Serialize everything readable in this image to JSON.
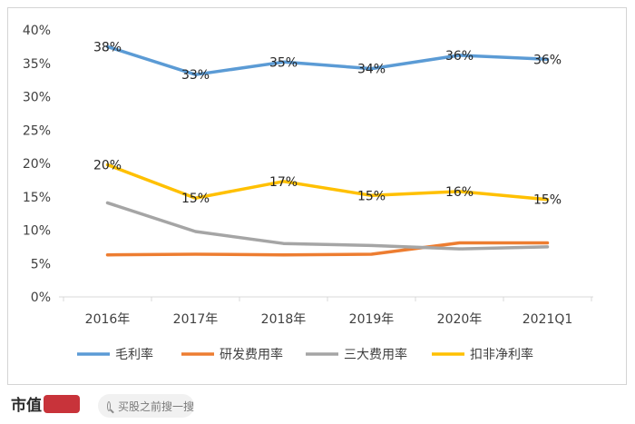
{
  "chart_data": {
    "type": "line",
    "categories": [
      "2016年",
      "2017年",
      "2018年",
      "2019年",
      "2020年",
      "2021Q1"
    ],
    "ylim": [
      0,
      40
    ],
    "yticks": [
      "0%",
      "5%",
      "10%",
      "15%",
      "20%",
      "25%",
      "30%",
      "35%",
      "40%"
    ],
    "grid": false,
    "legend_position": "bottom",
    "series": [
      {
        "name": "毛利率",
        "color": "#5b9bd5",
        "values": [
          37.5,
          33.3,
          35.2,
          34.2,
          36.2,
          35.6
        ],
        "labels": [
          "38%",
          "33%",
          "35%",
          "34%",
          "36%",
          "36%"
        ]
      },
      {
        "name": "研发费用率",
        "color": "#ed7d31",
        "values": [
          6.3,
          6.4,
          6.3,
          6.4,
          8.1,
          8.1
        ],
        "labels": []
      },
      {
        "name": "三大费用率",
        "color": "#a5a5a5",
        "values": [
          14.1,
          9.8,
          8.0,
          7.7,
          7.2,
          7.5
        ],
        "labels": []
      },
      {
        "name": "扣非净利率",
        "color": "#ffc000",
        "values": [
          19.8,
          14.8,
          17.3,
          15.2,
          15.8,
          14.6
        ],
        "labels": [
          "20%",
          "15%",
          "17%",
          "15%",
          "16%",
          "15%"
        ]
      }
    ]
  },
  "footer": {
    "brand": "市值",
    "search_placeholder": "买股之前搜一搜"
  }
}
